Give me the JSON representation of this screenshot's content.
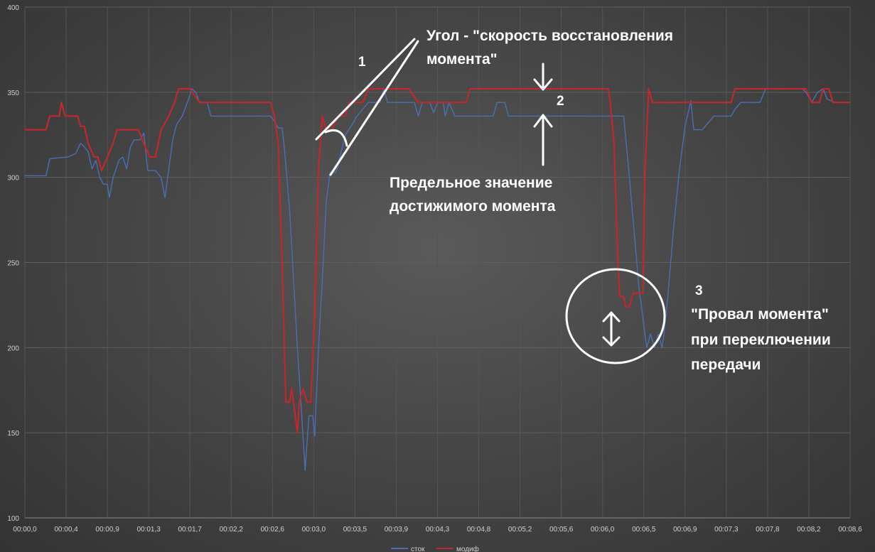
{
  "chart_data": {
    "type": "line",
    "title": "",
    "xlabel": "",
    "ylabel": "",
    "ylim": [
      100,
      400
    ],
    "yticks": [
      100,
      150,
      200,
      250,
      300,
      350,
      400
    ],
    "xticks": [
      "00:00,0",
      "00:00,4",
      "00:00,9",
      "00:01,3",
      "00:01,7",
      "00:02,2",
      "00:02,6",
      "00:03,0",
      "00:03,5",
      "00:03,9",
      "00:04,3",
      "00:04,8",
      "00:05,2",
      "00:05,6",
      "00:06,0",
      "00:06,5",
      "00:06,9",
      "00:07,3",
      "00:07,8",
      "00:08,2",
      "00:08,6"
    ],
    "xlim": [
      0,
      8.6
    ],
    "grid": true,
    "legend_position": "bottom",
    "series": [
      {
        "name": "сток",
        "color": "#4a6fb5",
        "points": [
          [
            0.0,
            301
          ],
          [
            0.22,
            301
          ],
          [
            0.26,
            311
          ],
          [
            0.45,
            312
          ],
          [
            0.53,
            314
          ],
          [
            0.58,
            320
          ],
          [
            0.62,
            318
          ],
          [
            0.66,
            315
          ],
          [
            0.7,
            305
          ],
          [
            0.74,
            310
          ],
          [
            0.78,
            300
          ],
          [
            0.82,
            296
          ],
          [
            0.86,
            296
          ],
          [
            0.88,
            288
          ],
          [
            0.92,
            300
          ],
          [
            0.98,
            310
          ],
          [
            1.02,
            312
          ],
          [
            1.06,
            305
          ],
          [
            1.1,
            318
          ],
          [
            1.14,
            322
          ],
          [
            1.2,
            322
          ],
          [
            1.24,
            326
          ],
          [
            1.28,
            304
          ],
          [
            1.36,
            304
          ],
          [
            1.42,
            300
          ],
          [
            1.46,
            288
          ],
          [
            1.5,
            305
          ],
          [
            1.54,
            322
          ],
          [
            1.58,
            331
          ],
          [
            1.64,
            336
          ],
          [
            1.7,
            345
          ],
          [
            1.74,
            352
          ],
          [
            1.78,
            350
          ],
          [
            1.82,
            344
          ],
          [
            1.9,
            344
          ],
          [
            1.94,
            336
          ],
          [
            2.0,
            336
          ],
          [
            2.56,
            336
          ],
          [
            2.6,
            333
          ],
          [
            2.64,
            329
          ],
          [
            2.68,
            329
          ],
          [
            2.7,
            320
          ],
          [
            2.76,
            280
          ],
          [
            2.84,
            200
          ],
          [
            2.88,
            165
          ],
          [
            2.92,
            128
          ],
          [
            2.96,
            160
          ],
          [
            3.0,
            160
          ],
          [
            3.02,
            148
          ],
          [
            3.06,
            200
          ],
          [
            3.1,
            240
          ],
          [
            3.14,
            285
          ],
          [
            3.18,
            303
          ],
          [
            3.24,
            303
          ],
          [
            3.26,
            306
          ],
          [
            3.3,
            316
          ],
          [
            3.34,
            325
          ],
          [
            3.4,
            330
          ],
          [
            3.46,
            336
          ],
          [
            3.52,
            340
          ],
          [
            3.58,
            344
          ],
          [
            3.66,
            344
          ],
          [
            3.7,
            344
          ],
          [
            3.74,
            352
          ],
          [
            3.78,
            344
          ],
          [
            4.0,
            344
          ],
          [
            4.06,
            344
          ],
          [
            4.1,
            336
          ],
          [
            4.14,
            344
          ],
          [
            4.22,
            344
          ],
          [
            4.26,
            338
          ],
          [
            4.3,
            344
          ],
          [
            4.36,
            344
          ],
          [
            4.38,
            336
          ],
          [
            4.42,
            344
          ],
          [
            4.48,
            336
          ],
          [
            4.8,
            336
          ],
          [
            4.88,
            336
          ],
          [
            4.92,
            344
          ],
          [
            5.0,
            344
          ],
          [
            5.04,
            336
          ],
          [
            5.4,
            336
          ],
          [
            6.24,
            336
          ],
          [
            6.3,
            300
          ],
          [
            6.4,
            235
          ],
          [
            6.48,
            200
          ],
          [
            6.52,
            208
          ],
          [
            6.56,
            200
          ],
          [
            6.6,
            208
          ],
          [
            6.64,
            200
          ],
          [
            6.66,
            208
          ],
          [
            6.7,
            230
          ],
          [
            6.76,
            270
          ],
          [
            6.82,
            304
          ],
          [
            6.88,
            330
          ],
          [
            6.94,
            345
          ],
          [
            6.97,
            328
          ],
          [
            7.06,
            328
          ],
          [
            7.12,
            332
          ],
          [
            7.18,
            336
          ],
          [
            7.36,
            336
          ],
          [
            7.4,
            340
          ],
          [
            7.46,
            344
          ],
          [
            7.66,
            344
          ],
          [
            7.72,
            352
          ],
          [
            8.0,
            352
          ],
          [
            8.1,
            352
          ],
          [
            8.14,
            350
          ],
          [
            8.2,
            344
          ],
          [
            8.26,
            350
          ],
          [
            8.32,
            352
          ],
          [
            8.36,
            346
          ],
          [
            8.44,
            344
          ],
          [
            8.52,
            344
          ],
          [
            8.56,
            344
          ],
          [
            8.6,
            344
          ]
        ]
      },
      {
        "name": "модиф",
        "color": "#c0282d",
        "points": [
          [
            0.0,
            328
          ],
          [
            0.22,
            328
          ],
          [
            0.26,
            336
          ],
          [
            0.36,
            336
          ],
          [
            0.38,
            344
          ],
          [
            0.42,
            336
          ],
          [
            0.55,
            336
          ],
          [
            0.58,
            330
          ],
          [
            0.62,
            330
          ],
          [
            0.66,
            320
          ],
          [
            0.72,
            312
          ],
          [
            0.76,
            312
          ],
          [
            0.8,
            304
          ],
          [
            0.86,
            312
          ],
          [
            0.92,
            320
          ],
          [
            0.96,
            328
          ],
          [
            1.18,
            328
          ],
          [
            1.24,
            320
          ],
          [
            1.3,
            312
          ],
          [
            1.36,
            312
          ],
          [
            1.42,
            328
          ],
          [
            1.5,
            336
          ],
          [
            1.56,
            344
          ],
          [
            1.6,
            352
          ],
          [
            1.68,
            352
          ],
          [
            1.72,
            352
          ],
          [
            1.82,
            344
          ],
          [
            1.92,
            344
          ],
          [
            2.0,
            344
          ],
          [
            2.56,
            344
          ],
          [
            2.6,
            336
          ],
          [
            2.64,
            320
          ],
          [
            2.68,
            250
          ],
          [
            2.72,
            168
          ],
          [
            2.76,
            168
          ],
          [
            2.78,
            176
          ],
          [
            2.8,
            168
          ],
          [
            2.84,
            150
          ],
          [
            2.86,
            168
          ],
          [
            2.9,
            176
          ],
          [
            2.94,
            168
          ],
          [
            2.98,
            168
          ],
          [
            3.02,
            220
          ],
          [
            3.06,
            305
          ],
          [
            3.1,
            336
          ],
          [
            3.14,
            328
          ],
          [
            3.2,
            328
          ],
          [
            3.26,
            336
          ],
          [
            3.34,
            336
          ],
          [
            3.38,
            344
          ],
          [
            3.44,
            344
          ],
          [
            3.52,
            344
          ],
          [
            3.58,
            352
          ],
          [
            4.0,
            352
          ],
          [
            4.1,
            344
          ],
          [
            4.6,
            344
          ],
          [
            4.64,
            352
          ],
          [
            5.0,
            352
          ],
          [
            5.4,
            352
          ],
          [
            6.08,
            352
          ],
          [
            6.1,
            344
          ],
          [
            6.14,
            320
          ],
          [
            6.18,
            250
          ],
          [
            6.2,
            230
          ],
          [
            6.24,
            230
          ],
          [
            6.26,
            224
          ],
          [
            6.3,
            224
          ],
          [
            6.34,
            232
          ],
          [
            6.4,
            232
          ],
          [
            6.44,
            232
          ],
          [
            6.46,
            300
          ],
          [
            6.5,
            352
          ],
          [
            6.54,
            344
          ],
          [
            6.6,
            344
          ],
          [
            6.7,
            344
          ],
          [
            6.8,
            344
          ],
          [
            7.0,
            344
          ],
          [
            7.36,
            344
          ],
          [
            7.4,
            352
          ],
          [
            7.6,
            352
          ],
          [
            7.64,
            352
          ],
          [
            8.1,
            352
          ],
          [
            8.14,
            352
          ],
          [
            8.2,
            344
          ],
          [
            8.28,
            344
          ],
          [
            8.32,
            352
          ],
          [
            8.38,
            352
          ],
          [
            8.42,
            344
          ],
          [
            8.46,
            344
          ],
          [
            8.6,
            344
          ]
        ]
      }
    ]
  },
  "annotations": {
    "label_1": "1",
    "angle_line1": "Угол - \"скорость восстановления",
    "angle_line2": "момента\"",
    "label_2": "2",
    "limit_line1": "Предельное значение",
    "limit_line2": "достижимого момента",
    "label_3": "3",
    "dip_line1": "\"Провал момента\"",
    "dip_line2": "при переключении",
    "dip_line3": "передачи"
  }
}
